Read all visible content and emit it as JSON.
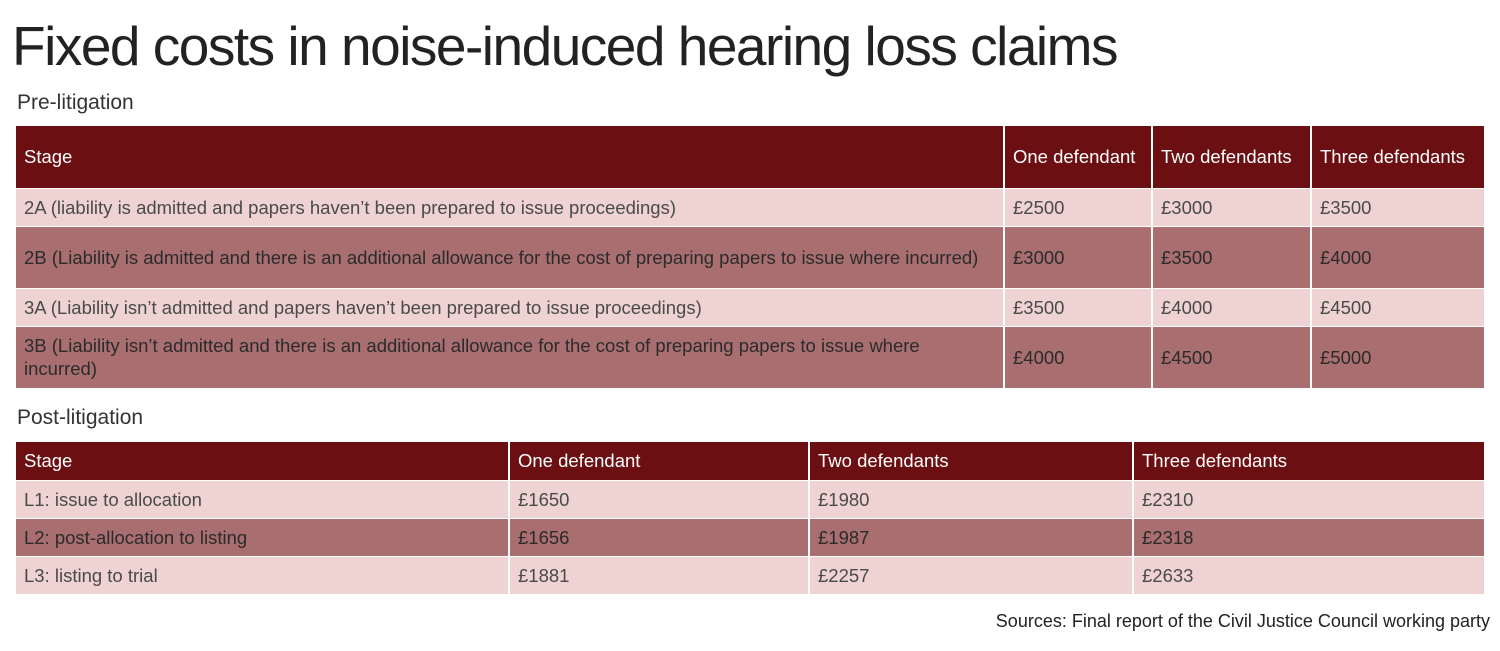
{
  "title": "Fixed costs in noise-induced hearing loss claims",
  "colors": {
    "header_bg": "#6b0f12",
    "row_light": "#eed3d2",
    "row_dark": "#a96e6f"
  },
  "pre_litigation": {
    "heading": "Pre-litigation",
    "columns": [
      "Stage",
      "One defendant",
      "Two defendants",
      "Three defendants"
    ],
    "rows": [
      {
        "stage": "2A (liability is admitted and papers haven’t been prepared to issue proceedings)",
        "one": "£2500",
        "two": "£3000",
        "three": "£3500"
      },
      {
        "stage": "2B (Liability is admitted and there is an additional allowance for the cost of preparing papers to issue where incurred)",
        "one": "£3000",
        "two": "£3500",
        "three": "£4000"
      },
      {
        "stage": "3A (Liability isn’t admitted and papers haven’t been prepared to issue proceedings)",
        "one": "£3500",
        "two": "£4000",
        "three": "£4500"
      },
      {
        "stage": "3B (Liability isn’t admitted and there is an additional allowance for the cost of preparing papers to issue where incurred)",
        "one": "£4000",
        "two": "£4500",
        "three": "£5000"
      }
    ]
  },
  "post_litigation": {
    "heading": "Post-litigation",
    "columns": [
      "Stage",
      "One defendant",
      "Two defendants",
      "Three defendants"
    ],
    "rows": [
      {
        "stage": "L1: issue to allocation",
        "one": "£1650",
        "two": "£1980",
        "three": "£2310"
      },
      {
        "stage": "L2: post-allocation to listing",
        "one": "£1656",
        "two": "£1987",
        "three": "£2318"
      },
      {
        "stage": "L3: listing to trial",
        "one": "£1881",
        "two": "£2257",
        "three": "£2633"
      }
    ]
  },
  "source": "Sources: Final report of the Civil Justice Council working party"
}
